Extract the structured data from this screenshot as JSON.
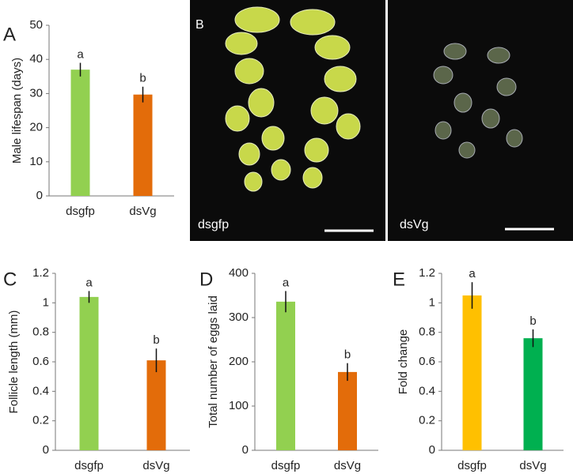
{
  "chart_data": [
    {
      "type": "bar",
      "panel": "A",
      "y_label": "Male lifespan (days)",
      "categories": [
        "dsgfp",
        "dsVg"
      ],
      "values": [
        37,
        29.7
      ],
      "errors": [
        2,
        2.3
      ],
      "annotations": [
        "a",
        "b"
      ],
      "colors": [
        "#92d050",
        "#e36c0a"
      ],
      "ylim": [
        0,
        50
      ],
      "yticks": [
        0,
        10,
        20,
        30,
        40,
        50
      ]
    },
    {
      "type": "image",
      "panel": "B",
      "labels": [
        "dsgfp",
        "dsVg"
      ]
    },
    {
      "type": "bar",
      "panel": "C",
      "y_label": "Follicle length (mm)",
      "categories": [
        "dsgfp",
        "dsVg"
      ],
      "values": [
        1.04,
        0.61
      ],
      "errors": [
        0.04,
        0.08
      ],
      "annotations": [
        "a",
        "b"
      ],
      "colors": [
        "#92d050",
        "#e36c0a"
      ],
      "ylim": [
        0,
        1.2
      ],
      "yticks": [
        0,
        0.2,
        0.4,
        0.6,
        0.8,
        1,
        1.2
      ]
    },
    {
      "type": "bar",
      "panel": "D",
      "y_label": "Total number of eggs laid",
      "categories": [
        "dsgfp",
        "dsVg"
      ],
      "values": [
        336,
        177
      ],
      "errors": [
        24,
        20
      ],
      "annotations": [
        "a",
        "b"
      ],
      "colors": [
        "#92d050",
        "#e36c0a"
      ],
      "ylim": [
        0,
        400
      ],
      "yticks": [
        0,
        100,
        200,
        300,
        400
      ]
    },
    {
      "type": "bar",
      "panel": "E",
      "y_label": "Fold change",
      "categories": [
        "dsgfp",
        "dsVg"
      ],
      "values": [
        1.05,
        0.76
      ],
      "errors": [
        0.09,
        0.06
      ],
      "annotations": [
        "a",
        "b"
      ],
      "colors": [
        "#ffc000",
        "#00b050"
      ],
      "ylim": [
        0,
        1.2
      ],
      "yticks": [
        0,
        0.2,
        0.4,
        0.6,
        0.8,
        1,
        1.2
      ]
    }
  ]
}
